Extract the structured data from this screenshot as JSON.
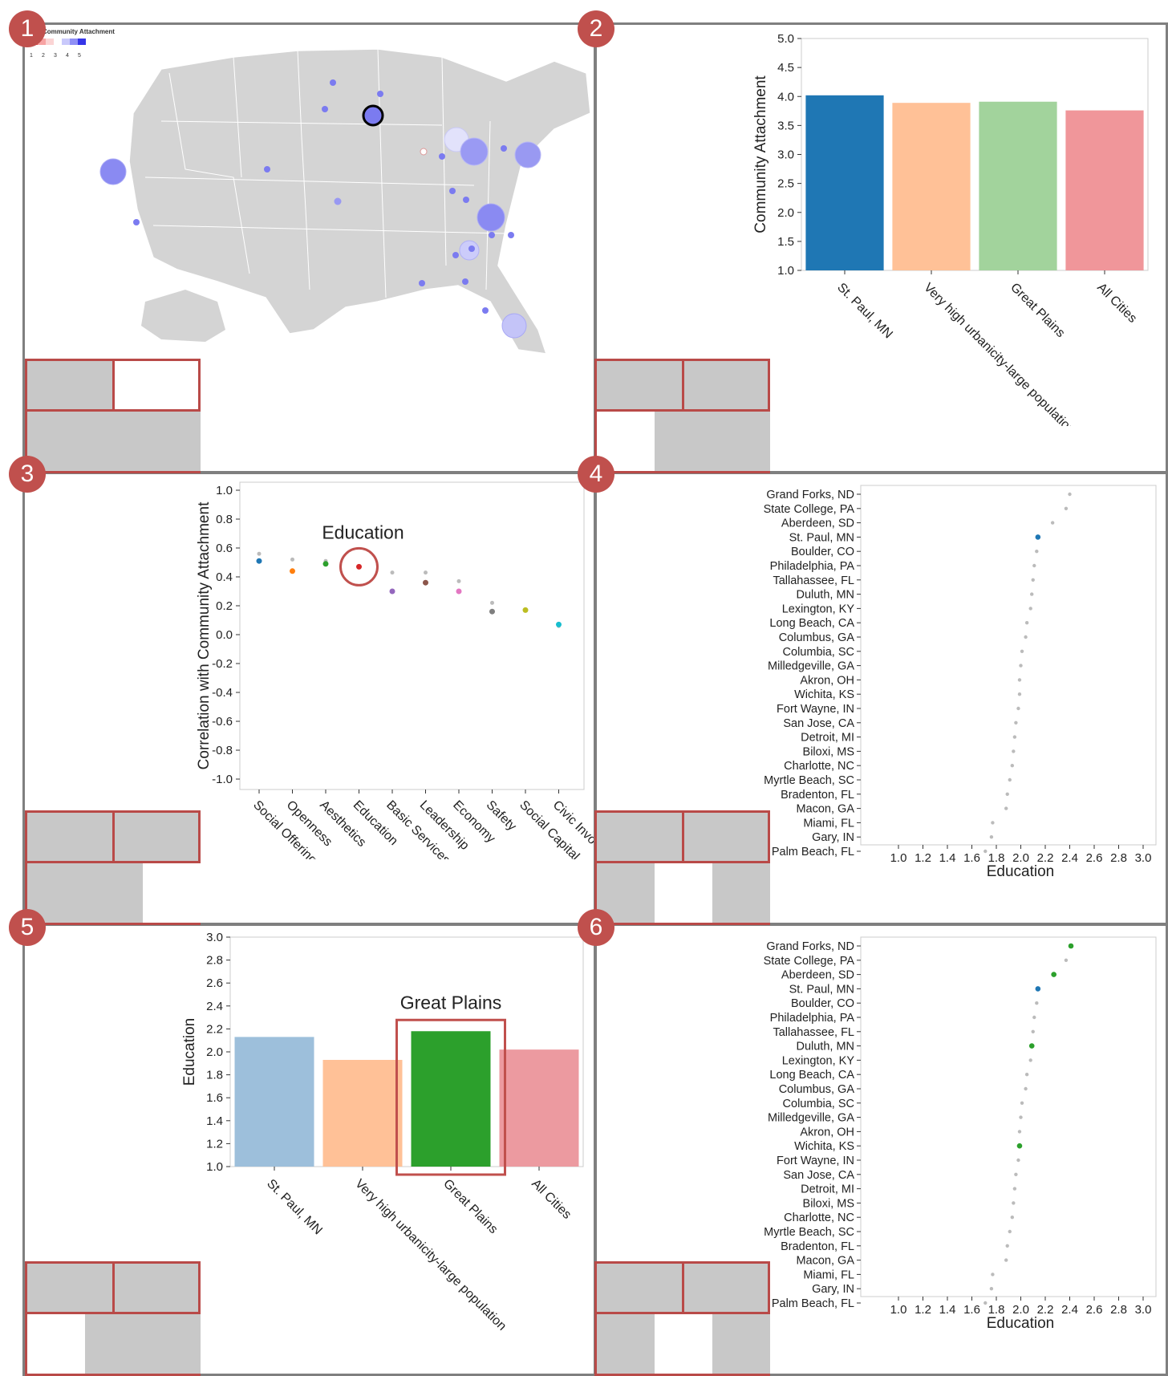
{
  "badges": [
    "1",
    "2",
    "3",
    "4",
    "5",
    "6"
  ],
  "map_legend": {
    "title": "Community Attachment",
    "ticks": [
      "1",
      "2",
      "3",
      "4",
      "5"
    ]
  },
  "colors": {
    "blue": "#1f77b4",
    "orange": "#ffbb88",
    "green": "#98d28c",
    "red": "#f0969a",
    "highlight_red": "#c0504d",
    "map_land": "#d4d4d4",
    "bubble": "#7b7bf0"
  },
  "chart_data": [
    {
      "id": "panel2",
      "type": "bar",
      "categories": [
        "St. Paul, MN",
        "Very high urbanicity-large population",
        "Great Plains",
        "All Cities"
      ],
      "values": [
        4.02,
        3.89,
        3.91,
        3.76
      ],
      "colors": [
        "#1f77b4",
        "#ffc197",
        "#a2d39c",
        "#f0969a"
      ],
      "ylabel": "Community Attachment",
      "ylim": [
        1.0,
        5.0
      ],
      "yticks": [
        "1.0",
        "1.5",
        "2.0",
        "2.5",
        "3.0",
        "3.5",
        "4.0",
        "4.5",
        "5.0"
      ]
    },
    {
      "id": "panel3",
      "type": "scatter",
      "categories": [
        "Social Offerings",
        "Openness",
        "Aesthetics",
        "Education",
        "Basic Services",
        "Leadership",
        "Economy",
        "Safety",
        "Social Capital",
        "Civic Invo"
      ],
      "values": [
        0.51,
        0.44,
        0.49,
        0.47,
        0.3,
        0.36,
        0.3,
        0.16,
        0.17,
        0.07
      ],
      "reference": [
        0.56,
        0.52,
        0.51,
        0.47,
        0.43,
        0.43,
        0.37,
        0.22,
        0.17,
        0.06
      ],
      "colors": [
        "#1f77b4",
        "#ff7f0e",
        "#2ca02c",
        "#d62728",
        "#9467bd",
        "#8c564b",
        "#e377c2",
        "#7f7f7f",
        "#bcbd22",
        "#17becf"
      ],
      "ylabel": "Correlation with Community Attachment",
      "ylim": [
        -1.0,
        1.0
      ],
      "yticks": [
        "1.0",
        "0.8",
        "0.6",
        "0.4",
        "0.2",
        "0.0",
        "-0.2",
        "-0.4",
        "-0.6",
        "-0.8",
        "-1.0"
      ],
      "annotation": "Education"
    },
    {
      "id": "panel4",
      "type": "scatter",
      "categories": [
        "Grand Forks, ND",
        "State College, PA",
        "Aberdeen, SD",
        "St. Paul, MN",
        "Boulder, CO",
        "Philadelphia, PA",
        "Tallahassee, FL",
        "Duluth, MN",
        "Lexington, KY",
        "Long Beach, CA",
        "Columbus, GA",
        "Columbia, SC",
        "Milledgeville, GA",
        "Akron, OH",
        "Wichita, KS",
        "Fort Wayne, IN",
        "San Jose, CA",
        "Detroit, MI",
        "Biloxi, MS",
        "Charlotte, NC",
        "Myrtle Beach, SC",
        "Bradenton, FL",
        "Macon, GA",
        "Miami, FL",
        "Gary, IN",
        "Palm Beach, FL"
      ],
      "values": [
        2.4,
        2.37,
        2.26,
        2.14,
        2.13,
        2.11,
        2.1,
        2.09,
        2.08,
        2.05,
        2.04,
        2.01,
        2.0,
        1.99,
        1.99,
        1.98,
        1.96,
        1.95,
        1.94,
        1.93,
        1.91,
        1.89,
        1.88,
        1.77,
        1.76,
        1.71
      ],
      "highlight": {
        "St. Paul, MN": "#1f77b4"
      },
      "xlabel": "Education",
      "xlim": [
        1.0,
        3.0
      ],
      "xticks": [
        "1.0",
        "1.2",
        "1.4",
        "1.6",
        "1.8",
        "2.0",
        "2.2",
        "2.4",
        "2.6",
        "2.8",
        "3.0"
      ]
    },
    {
      "id": "panel5",
      "type": "bar",
      "categories": [
        "St. Paul, MN",
        "Very high urbanicity-large population",
        "Great Plains",
        "All Cities"
      ],
      "values": [
        2.13,
        1.93,
        2.18,
        2.02
      ],
      "colors": [
        "#9dbfdb",
        "#ffc197",
        "#2ca02c",
        "#ec9aa0"
      ],
      "ylabel": "Education",
      "ylim": [
        1.0,
        3.0
      ],
      "yticks": [
        "1.0",
        "1.2",
        "1.4",
        "1.6",
        "1.8",
        "2.0",
        "2.2",
        "2.4",
        "2.6",
        "2.8",
        "3.0"
      ],
      "annotation": "Great Plains"
    },
    {
      "id": "panel6",
      "type": "scatter",
      "categories": [
        "Grand Forks, ND",
        "State College, PA",
        "Aberdeen, SD",
        "St. Paul, MN",
        "Boulder, CO",
        "Philadelphia, PA",
        "Tallahassee, FL",
        "Duluth, MN",
        "Lexington, KY",
        "Long Beach, CA",
        "Columbus, GA",
        "Columbia, SC",
        "Milledgeville, GA",
        "Akron, OH",
        "Wichita, KS",
        "Fort Wayne, IN",
        "San Jose, CA",
        "Detroit, MI",
        "Biloxi, MS",
        "Charlotte, NC",
        "Myrtle Beach, SC",
        "Bradenton, FL",
        "Macon, GA",
        "Miami, FL",
        "Gary, IN",
        "Palm Beach, FL"
      ],
      "values": [
        2.41,
        2.37,
        2.27,
        2.14,
        2.13,
        2.11,
        2.1,
        2.09,
        2.08,
        2.05,
        2.04,
        2.01,
        2.0,
        1.99,
        1.99,
        1.98,
        1.96,
        1.95,
        1.94,
        1.93,
        1.91,
        1.89,
        1.88,
        1.77,
        1.76,
        1.71
      ],
      "highlight": {
        "St. Paul, MN": "#1f77b4",
        "Grand Forks, ND": "#2ca02c",
        "Aberdeen, SD": "#2ca02c",
        "Duluth, MN": "#2ca02c",
        "Wichita, KS": "#2ca02c"
      },
      "xlabel": "Education",
      "xlim": [
        1.0,
        3.0
      ],
      "xticks": [
        "1.0",
        "1.2",
        "1.4",
        "1.6",
        "1.8",
        "2.0",
        "2.2",
        "2.4",
        "2.6",
        "2.8",
        "3.0"
      ]
    }
  ]
}
